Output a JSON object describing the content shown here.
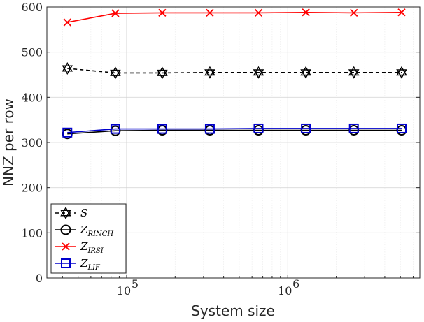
{
  "chart_data": {
    "type": "line",
    "xlabel": "System size",
    "ylabel": "NNZ per row",
    "xscale": "log",
    "xlim": [
      32000,
      6600000
    ],
    "ylim": [
      0,
      600
    ],
    "grid": true,
    "legend_position": "bottom-left",
    "y_ticks": [
      0,
      100,
      200,
      300,
      400,
      500,
      600
    ],
    "x_major_ticks": [
      100000,
      1000000
    ],
    "x_major_tick_labels": [
      {
        "base": "10",
        "exp": "5"
      },
      {
        "base": "10",
        "exp": "6"
      }
    ],
    "x": [
      42875,
      85184,
      166375,
      328509,
      658503,
      1295029,
      2571353,
      5088448
    ],
    "series": [
      {
        "name": "S",
        "legend": {
          "main": "S",
          "sub": ""
        },
        "color": "#000000",
        "marker": "hexagram",
        "line": "dashed",
        "values": [
          464,
          454,
          454,
          455,
          455,
          455,
          455,
          455
        ]
      },
      {
        "name": "Z_RINCH",
        "legend": {
          "main": "Z",
          "sub": "RINCH"
        },
        "color": "#000000",
        "marker": "circle",
        "line": "solid",
        "values": [
          319,
          326,
          327,
          327,
          327,
          327,
          327,
          327
        ]
      },
      {
        "name": "Z_IRSI",
        "legend": {
          "main": "Z",
          "sub": "IRSI"
        },
        "color": "#ff0000",
        "marker": "x",
        "line": "solid",
        "values": [
          566,
          586,
          587,
          587,
          587,
          588,
          587,
          588
        ]
      },
      {
        "name": "Z_LIF",
        "legend": {
          "main": "Z",
          "sub": "LIF"
        },
        "color": "#0000cc",
        "marker": "square",
        "line": "solid",
        "values": [
          322,
          330,
          330,
          330,
          331,
          331,
          331,
          331
        ]
      }
    ]
  }
}
